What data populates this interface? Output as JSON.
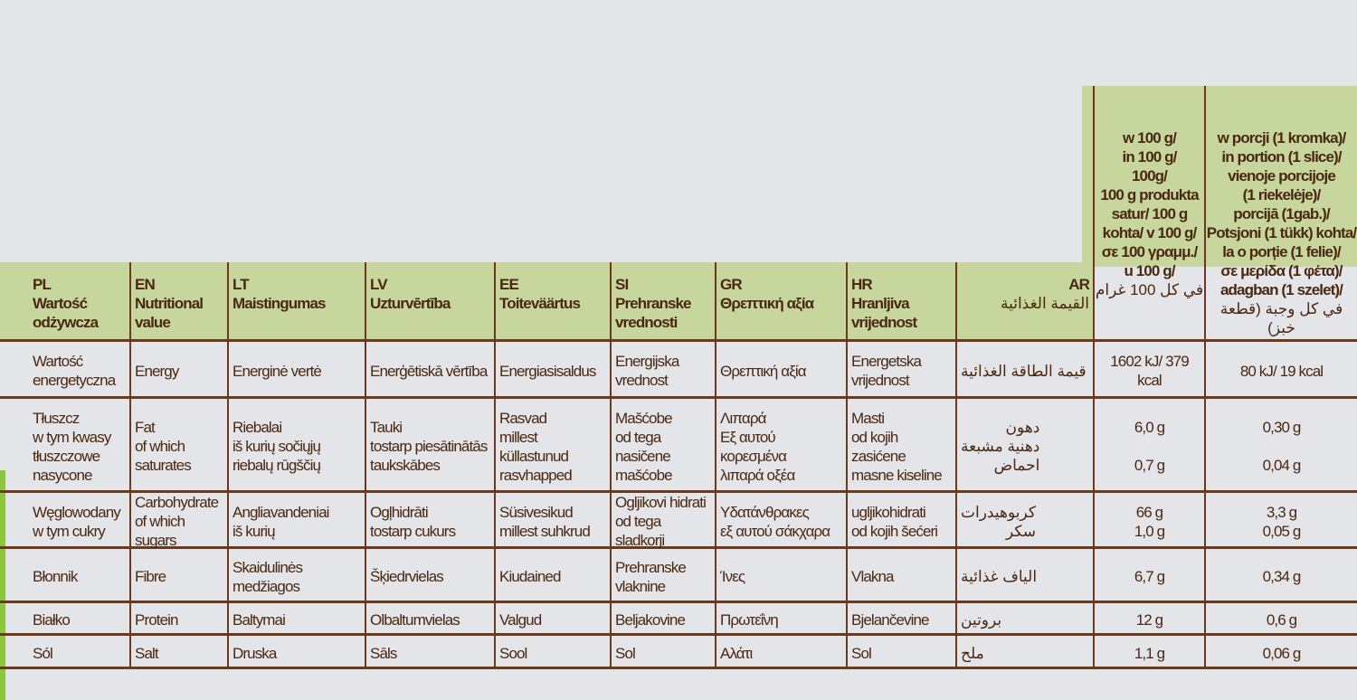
{
  "colors": {
    "header_green": "#c6d69c",
    "text_brown": "#4a2812",
    "rule_brown": "#6b3a1e",
    "background": "#e4e5e8"
  },
  "headers": [
    {
      "code": "PL",
      "name": "Wartość\nodżywcza"
    },
    {
      "code": "EN",
      "name": "Nutritional\nvalue"
    },
    {
      "code": "LT",
      "name": "Maistingumas"
    },
    {
      "code": "LV",
      "name": "Uzturvērtība"
    },
    {
      "code": "EE",
      "name": "Toiteväärtus"
    },
    {
      "code": "SI",
      "name": "Prehranske\nvrednosti"
    },
    {
      "code": "GR",
      "name": "Θρεπτική αξία"
    },
    {
      "code": "HR",
      "name": "Hranljiva\nvrijednost"
    },
    {
      "code": "AR",
      "name": "القيمة الغذائية"
    }
  ],
  "per_100g_header": {
    "text": "w 100 g/\nin 100 g/\n100g/\n100 g produkta\nsatur/ 100 g\nkohta/ v 100 g/\nσε 100 γραμμ./\nu 100 g/",
    "arabic": "في كل 100 غرام"
  },
  "portion_header": {
    "text": "w porcji (1 kromka)/\nin portion (1 slice)/\nvienoje porcijoje\n(1 riekelėje)/\nporcijā (1gab.)/\nPotsjoni (1 tükk) kohta/\nla o porție (1 felie)/\nσε μερίδα (1 φέτα)/\nadagban (1 szelet)/",
    "arabic": "في كل وجبة (قطعة خبز)"
  },
  "rows": [
    {
      "cells": [
        "Wartość\nenergetyczna",
        "Energy",
        "Energinė vertė",
        "Enerģētiskā vērtība",
        "Energiasisaldus",
        "Energijska\nvrednost",
        "Θρεπτική αξία",
        "Energetska\nvrijednost",
        "قيمة الطاقة الغذائية"
      ],
      "per_100g": "1602 kJ/ 379 kcal",
      "portion": "80 kJ/ 19 kcal"
    },
    {
      "cells": [
        "Tłuszcz\nw tym kwasy\ntłuszczowe\nnasycone",
        "Fat\nof which\nsaturates",
        "Riebalai\niš kurių sočiųjų\nriebalų rūgščių",
        "Tauki\ntostarp piesātinātās\ntaukskābes",
        "Rasvad\nmillest küllastunud\nrasvhapped",
        "Mašćobe\nod tega nasičene\nmašćobe",
        "Λιπαρά\nΕξ αυτού κορεσμένα\nλιπαρά οξέα",
        "Masti\nod kojih zasićene\nmasne kiseline",
        "دهون\nدهنية مشبعة\nاحماض"
      ],
      "per_100g": "6,0 g\n\n0,7 g",
      "portion": "0,30 g\n\n0,04 g"
    },
    {
      "cells": [
        "Węglowodany\nw tym cukry",
        "Carbohydrate\nof which sugars",
        "Angliavandeniai\niš kurių",
        "Ogļhidrāti\ntostarp cukurs",
        "Süsivesikud\nmillest suhkrud",
        "Ogljikovi hidrati\nod tega sladkorji",
        "Υδατάνθρακες\nεξ αυτού σάκχαρα",
        "ugljikohidrati\nod kojih šećeri",
        "كربوهيدرات\nسكر"
      ],
      "per_100g": "66 g\n1,0 g",
      "portion": "3,3 g\n0,05 g"
    },
    {
      "cells": [
        "Błonnik",
        "Fibre",
        "Skaidulinės medžiagos",
        "Šķiedrvielas",
        "Kiudained",
        "Prehranske\nvlaknine",
        "Ίνες",
        "Vlakna",
        "الياف غذائية"
      ],
      "per_100g": "6,7 g",
      "portion": "0,34 g"
    },
    {
      "cells": [
        "Białko",
        "Protein",
        "Baltymai",
        "Olbaltumvielas",
        "Valgud",
        "Beljakovine",
        "Πρωτεΐνη",
        "Bjelančevine",
        "بروتين"
      ],
      "per_100g": "12 g",
      "portion": "0,6 g"
    },
    {
      "cells": [
        "Sól",
        "Salt",
        "Druska",
        "Sāls",
        "Sool",
        "Sol",
        "Αλάτι",
        "Sol",
        "ملح"
      ],
      "per_100g": "1,1 g",
      "portion": "0,06 g"
    }
  ]
}
